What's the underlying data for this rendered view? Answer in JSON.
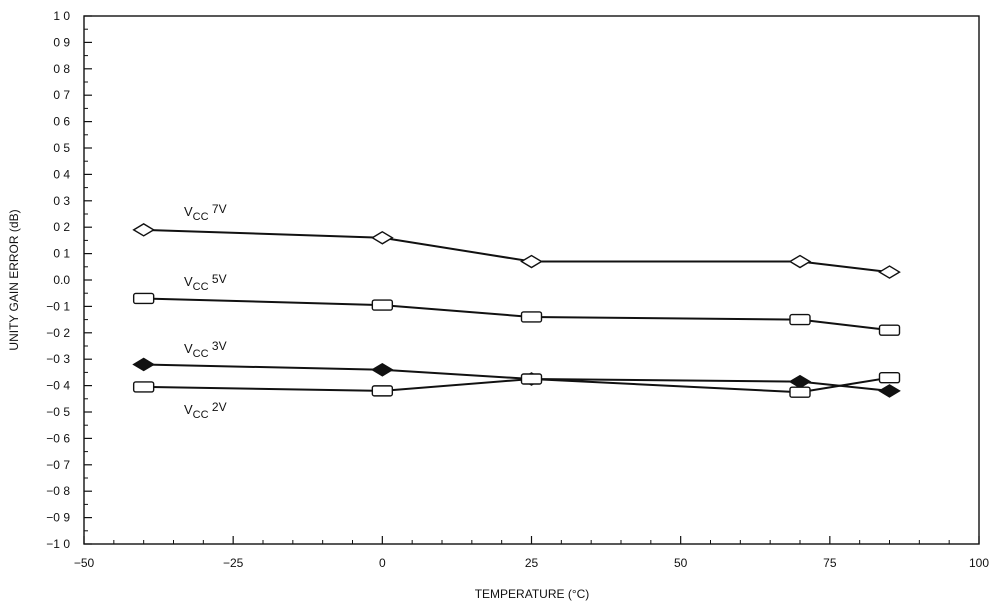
{
  "chart_data": {
    "type": "line",
    "xlabel": "TEMPERATURE (°C)",
    "ylabel": "UNITY GAIN ERROR (dB)",
    "xlim": [
      -50,
      100
    ],
    "ylim": [
      -1.0,
      1.0
    ],
    "x_ticks": [
      -50,
      -25,
      0,
      25,
      50,
      75,
      100
    ],
    "x_tick_labels": [
      "−50",
      "−25",
      "0",
      "25",
      "50",
      "75",
      "100"
    ],
    "y_ticks": [
      1.0,
      0.9,
      0.8,
      0.7,
      0.6,
      0.5,
      0.4,
      0.3,
      0.2,
      0.1,
      0.0,
      -0.1,
      -0.2,
      -0.3,
      -0.4,
      -0.5,
      -0.6,
      -0.7,
      -0.8,
      -0.9,
      -1.0
    ],
    "y_tick_labels": [
      "1 0",
      "0 9",
      "0 8",
      "0 7",
      "0 6",
      "0 5",
      "0 4",
      "0 3",
      "0 2",
      "0 1",
      "0.0",
      "−0 1",
      "−0 2",
      "−0 3",
      "−0 4",
      "−0 5",
      "−0 6",
      "−0 7",
      "−0 8",
      "−0 9",
      "−1 0"
    ],
    "grid": false,
    "series": [
      {
        "name": "VCC 7V",
        "label_main": "V",
        "label_sub": "CC",
        "label_tail": " 7V",
        "marker": "diamond-open",
        "color": "#111111",
        "x": [
          -40,
          0,
          25,
          70,
          85
        ],
        "y": [
          0.19,
          0.16,
          0.07,
          0.07,
          0.03
        ]
      },
      {
        "name": "VCC 5V",
        "label_main": "V",
        "label_sub": "CC",
        "label_tail": " 5V",
        "marker": "rect-open",
        "color": "#111111",
        "x": [
          -40,
          0,
          25,
          70,
          85
        ],
        "y": [
          -0.07,
          -0.095,
          -0.14,
          -0.15,
          -0.19
        ]
      },
      {
        "name": "VCC 3V",
        "label_main": "V",
        "label_sub": "CC",
        "label_tail": " 3V",
        "marker": "diamond-filled",
        "color": "#111111",
        "x": [
          -40,
          0,
          25,
          70,
          85
        ],
        "y": [
          -0.32,
          -0.34,
          -0.375,
          -0.385,
          -0.42
        ]
      },
      {
        "name": "VCC 2V",
        "label_main": "V",
        "label_sub": "CC",
        "label_tail": " 2V",
        "marker": "rect-open",
        "color": "#111111",
        "x": [
          -40,
          0,
          25,
          70,
          85
        ],
        "y": [
          -0.405,
          -0.42,
          -0.375,
          -0.425,
          -0.37
        ]
      }
    ]
  }
}
